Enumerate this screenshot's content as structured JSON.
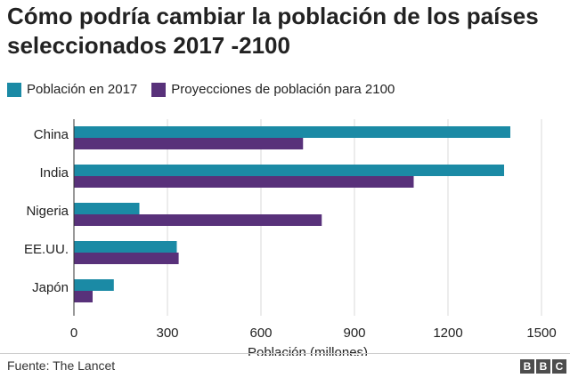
{
  "title": "Cómo podría cambiar la población de los países seleccionados 2017 -2100",
  "legend": [
    {
      "label": "Población en 2017",
      "color": "#1b8aa5"
    },
    {
      "label": "Proyecciones de población para 2100",
      "color": "#58317a"
    }
  ],
  "chart_data": {
    "type": "bar",
    "orientation": "horizontal",
    "categories": [
      "China",
      "India",
      "Nigeria",
      "EE.UU.",
      "Japón"
    ],
    "series": [
      {
        "name": "Población en 2017",
        "values": [
          1400,
          1380,
          210,
          330,
          128
        ]
      },
      {
        "name": "Proyecciones de población para 2100",
        "values": [
          735,
          1090,
          795,
          336,
          60
        ]
      }
    ],
    "xlim": [
      0,
      1500
    ],
    "xticks": [
      "0",
      "300",
      "600",
      "900",
      "1200",
      "1500"
    ],
    "xlabel": "Población (millones)",
    "grid": true,
    "legend_position": "top-left"
  },
  "footer": {
    "source": "Fuente: The Lancet",
    "logo_letters": [
      "B",
      "B",
      "C"
    ]
  }
}
